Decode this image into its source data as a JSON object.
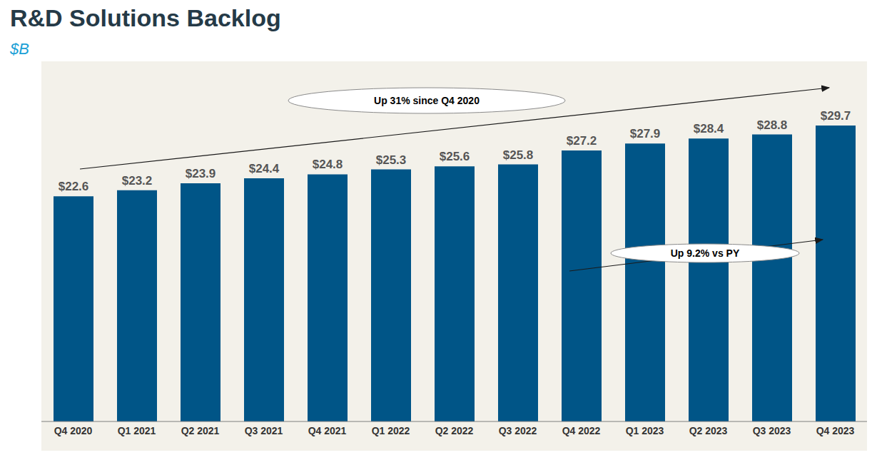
{
  "chart_data": {
    "type": "bar",
    "title": "R&D Solutions Backlog",
    "subtitle": "$B",
    "categories": [
      "Q4 2020",
      "Q1 2021",
      "Q2 2021",
      "Q3 2021",
      "Q4 2021",
      "Q1 2022",
      "Q2 2022",
      "Q3 2022",
      "Q4 2022",
      "Q1 2023",
      "Q2 2023",
      "Q3 2023",
      "Q4 2023"
    ],
    "values": [
      22.6,
      23.2,
      23.9,
      24.4,
      24.8,
      25.3,
      25.6,
      25.8,
      27.2,
      27.9,
      28.4,
      28.8,
      29.7
    ],
    "value_labels": [
      "$22.6",
      "$23.2",
      "$23.9",
      "$24.4",
      "$24.8",
      "$25.3",
      "$25.6",
      "$25.8",
      "$27.2",
      "$27.9",
      "$28.4",
      "$28.8",
      "$29.7"
    ],
    "color": "#005587",
    "ylim": [
      0,
      36
    ],
    "grid": false,
    "data_labels": true,
    "tick_labels": "x",
    "annotations": [
      "Up 31% since Q4 2020",
      "Up 9.2% vs PY"
    ]
  }
}
